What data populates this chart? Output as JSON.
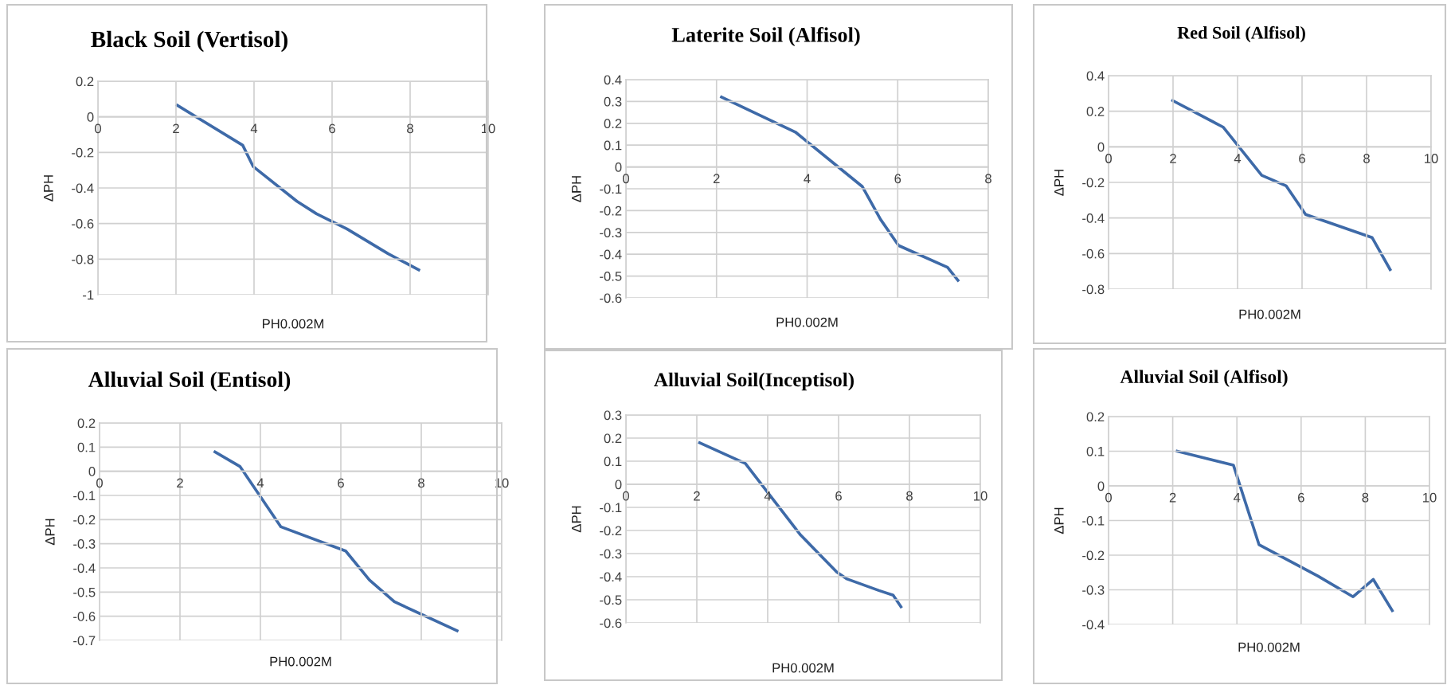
{
  "chart_data": [
    {
      "type": "line",
      "title": "Black Soil (Vertisol)",
      "xlabel": "PH0.002M",
      "ylabel": "ΔPH",
      "x": [
        2.03,
        3.71,
        3.98,
        5.1,
        5.6,
        6.38,
        7.44,
        8.22
      ],
      "series": [
        {
          "color": "#3e6aa8",
          "values": [
            0.065,
            -0.16,
            -0.28,
            -0.475,
            -0.545,
            -0.63,
            -0.77,
            -0.86
          ]
        }
      ],
      "xlim": [
        0,
        10
      ],
      "xticks": [
        0,
        2,
        4,
        6,
        8,
        10
      ],
      "ylim": [
        -1,
        0.2
      ],
      "yticks": [
        -1,
        -0.8,
        -0.6,
        -0.4,
        -0.2,
        0,
        0.2
      ],
      "grid": true,
      "marker": "none",
      "line_style": "solid"
    },
    {
      "type": "line",
      "title": "Laterite Soil (Alfisol)",
      "xlabel": "PH0.002M",
      "ylabel": "ΔPH",
      "x": [
        2.11,
        3.74,
        5.22,
        5.62,
        6.02,
        7.1,
        7.33
      ],
      "series": [
        {
          "color": "#3e6aa8",
          "values": [
            0.32,
            0.16,
            -0.09,
            -0.24,
            -0.36,
            -0.46,
            -0.52
          ]
        }
      ],
      "xlim": [
        0,
        8
      ],
      "xticks": [
        0,
        2,
        4,
        6,
        8
      ],
      "ylim": [
        -0.6,
        0.4
      ],
      "yticks": [
        -0.6,
        -0.5,
        -0.4,
        -0.3,
        -0.2,
        -0.1,
        0,
        0.1,
        0.2,
        0.3,
        0.4
      ],
      "grid": true,
      "marker": "none",
      "line_style": "solid"
    },
    {
      "type": "line",
      "title": "Red Soil (Alfisol)",
      "xlabel": "PH0.002M",
      "ylabel": "ΔPH",
      "x": [
        1.99,
        3.56,
        4.75,
        5.51,
        6.11,
        8.17,
        8.73
      ],
      "series": [
        {
          "color": "#3e6aa8",
          "values": [
            0.26,
            0.11,
            -0.16,
            -0.22,
            -0.38,
            -0.51,
            -0.69
          ]
        }
      ],
      "xlim": [
        0,
        10
      ],
      "xticks": [
        0,
        2,
        4,
        6,
        8,
        10
      ],
      "ylim": [
        -0.8,
        0.4
      ],
      "yticks": [
        -0.8,
        -0.6,
        -0.4,
        -0.2,
        0,
        0.2,
        0.4
      ],
      "grid": true,
      "marker": "none",
      "line_style": "solid"
    },
    {
      "type": "line",
      "title": "Alluvial Soil (Entisol)",
      "xlabel": "PH0.002M",
      "ylabel": "ΔPH",
      "x": [
        2.87,
        3.49,
        4.51,
        6.12,
        6.71,
        7.33,
        8.89
      ],
      "series": [
        {
          "color": "#3e6aa8",
          "values": [
            0.08,
            0.02,
            -0.23,
            -0.33,
            -0.45,
            -0.54,
            -0.66
          ]
        }
      ],
      "xlim": [
        0,
        10
      ],
      "xticks": [
        0,
        2,
        4,
        6,
        8,
        10
      ],
      "ylim": [
        -0.7,
        0.2
      ],
      "yticks": [
        -0.7,
        -0.6,
        -0.5,
        -0.4,
        -0.3,
        -0.2,
        -0.1,
        0,
        0.1,
        0.2
      ],
      "grid": true,
      "marker": "none",
      "line_style": "solid"
    },
    {
      "type": "line",
      "title": "Alluvial Soil(Inceptisol)",
      "xlabel": "PH0.002M",
      "ylabel": "ΔPH",
      "x": [
        2.08,
        3.37,
        4.93,
        5.95,
        6.24,
        7.14,
        7.54,
        7.76
      ],
      "series": [
        {
          "color": "#3e6aa8",
          "values": [
            0.18,
            0.09,
            -0.22,
            -0.38,
            -0.41,
            -0.46,
            -0.48,
            -0.53
          ]
        }
      ],
      "xlim": [
        0,
        10
      ],
      "xticks": [
        0,
        2,
        4,
        6,
        8,
        10
      ],
      "ylim": [
        -0.6,
        0.3
      ],
      "yticks": [
        -0.6,
        -0.5,
        -0.4,
        -0.3,
        -0.2,
        -0.1,
        0,
        0.1,
        0.2,
        0.3
      ],
      "grid": true,
      "marker": "none",
      "line_style": "solid"
    },
    {
      "type": "line",
      "title": "Alluvial Soil (Alfisol)",
      "xlabel": "PH0.002M",
      "ylabel": "ΔPH",
      "x": [
        2.14,
        3.89,
        4.69,
        6.52,
        7.62,
        8.25,
        8.84
      ],
      "series": [
        {
          "color": "#3e6aa8",
          "values": [
            0.1,
            0.06,
            -0.17,
            -0.26,
            -0.32,
            -0.27,
            -0.36
          ]
        }
      ],
      "xlim": [
        0,
        10
      ],
      "xticks": [
        0,
        2,
        4,
        6,
        8,
        10
      ],
      "ylim": [
        -0.4,
        0.2
      ],
      "yticks": [
        -0.4,
        -0.3,
        -0.2,
        -0.1,
        0,
        0.1,
        0.2
      ],
      "grid": true,
      "marker": "none",
      "line_style": "solid"
    }
  ]
}
